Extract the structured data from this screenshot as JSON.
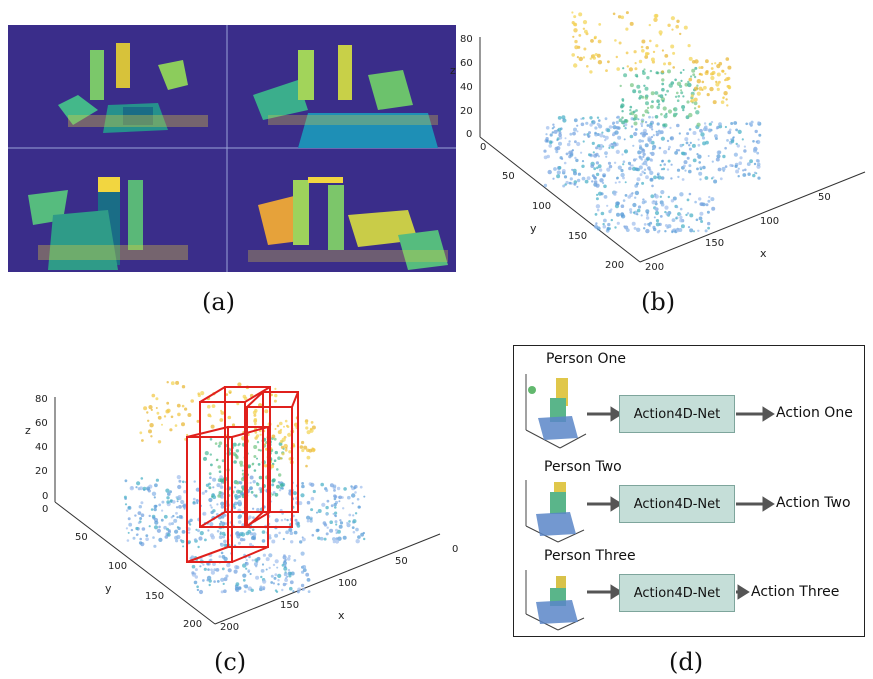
{
  "captions": {
    "a": "(a)",
    "b": "(b)",
    "c": "(c)",
    "d": "(d)"
  },
  "plot3d": {
    "z_ticks": [
      "0",
      "20",
      "40",
      "60",
      "80"
    ],
    "z_label": "z",
    "y_ticks": [
      "0",
      "50",
      "100",
      "150",
      "200"
    ],
    "y_label": "y",
    "x_ticks": [
      "200",
      "150",
      "100",
      "50",
      "0"
    ],
    "x_label": "x"
  },
  "pipeline": {
    "rows": [
      {
        "person": "Person One",
        "net": "Action4D-Net",
        "action": "Action One"
      },
      {
        "person": "Person Two",
        "net": "Action4D-Net",
        "action": "Action Two"
      },
      {
        "person": "Person Three",
        "net": "Action4D-Net",
        "action": "Action Three"
      }
    ]
  },
  "colors": {
    "depth_bg": "#3a2d8a",
    "box_red": "#e0201c",
    "net_fill": "#c5ded8"
  }
}
